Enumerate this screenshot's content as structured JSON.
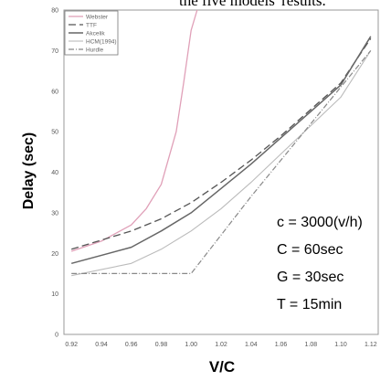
{
  "page": {
    "top_caption": "the five models' results."
  },
  "chart_data": {
    "type": "line",
    "xlabel": "V/C",
    "ylabel": "Delay (sec)",
    "xlim": [
      0.915,
      1.125
    ],
    "ylim": [
      0,
      80
    ],
    "x_ticks": [
      "0.92",
      "0.94",
      "0.96",
      "0.98",
      "1.00",
      "1.02",
      "1.04",
      "1.06",
      "1.08",
      "1.10",
      "1.12"
    ],
    "x_tick_values": [
      0.92,
      0.94,
      0.96,
      0.98,
      1.0,
      1.02,
      1.04,
      1.06,
      1.08,
      1.1,
      1.12
    ],
    "y_ticks": [
      "0",
      "10",
      "20",
      "30",
      "40",
      "50",
      "60",
      "70",
      "80"
    ],
    "y_tick_values": [
      0,
      10,
      20,
      30,
      40,
      50,
      60,
      70,
      80
    ],
    "grid": false,
    "legend_position": "top-left",
    "series": [
      {
        "name": "Webster",
        "color": "#e0a0b8",
        "dash": "",
        "width": 1.3,
        "x": [
          0.92,
          0.94,
          0.96,
          0.97,
          0.98,
          0.99,
          0.995,
          1.0,
          1.004
        ],
        "y": [
          20.5,
          23,
          27,
          31,
          37,
          50,
          62,
          75,
          80
        ]
      },
      {
        "name": "TTF",
        "color": "#555555",
        "dash": "8,4",
        "width": 1.3,
        "x": [
          0.92,
          0.96,
          0.98,
          1.0,
          1.02,
          1.04,
          1.06,
          1.08,
          1.1,
          1.12
        ],
        "y": [
          21,
          25.5,
          28.5,
          32.5,
          37.5,
          43,
          49,
          55.5,
          62,
          73
        ]
      },
      {
        "name": "Akcelik",
        "color": "#666666",
        "dash": "",
        "width": 1.5,
        "x": [
          0.92,
          0.96,
          0.98,
          1.0,
          1.02,
          1.04,
          1.06,
          1.08,
          1.1,
          1.12
        ],
        "y": [
          17.5,
          21.5,
          25.5,
          30,
          36,
          42,
          48.5,
          55,
          61.5,
          73.5
        ]
      },
      {
        "name": "HCM(1994)",
        "color": "#bbbbbb",
        "dash": "",
        "width": 1.1,
        "x": [
          0.92,
          0.96,
          0.98,
          1.0,
          1.02,
          1.04,
          1.06,
          1.08,
          1.1,
          1.12
        ],
        "y": [
          14.5,
          17.5,
          21,
          25.5,
          31,
          37.5,
          44.5,
          51.5,
          58.5,
          70
        ]
      },
      {
        "name": "Hurdle",
        "color": "#888888",
        "dash": "6,2,1,2",
        "width": 1.2,
        "x": [
          0.92,
          0.96,
          0.98,
          1.0,
          1.04,
          1.08,
          1.12
        ],
        "y": [
          15,
          15,
          15,
          15,
          34,
          52,
          70
        ]
      }
    ],
    "annotations": [
      {
        "text": "c = 3000(v/h)"
      },
      {
        "text": "C = 60sec"
      },
      {
        "text": "G = 30sec"
      },
      {
        "text": "T = 15min"
      }
    ]
  }
}
